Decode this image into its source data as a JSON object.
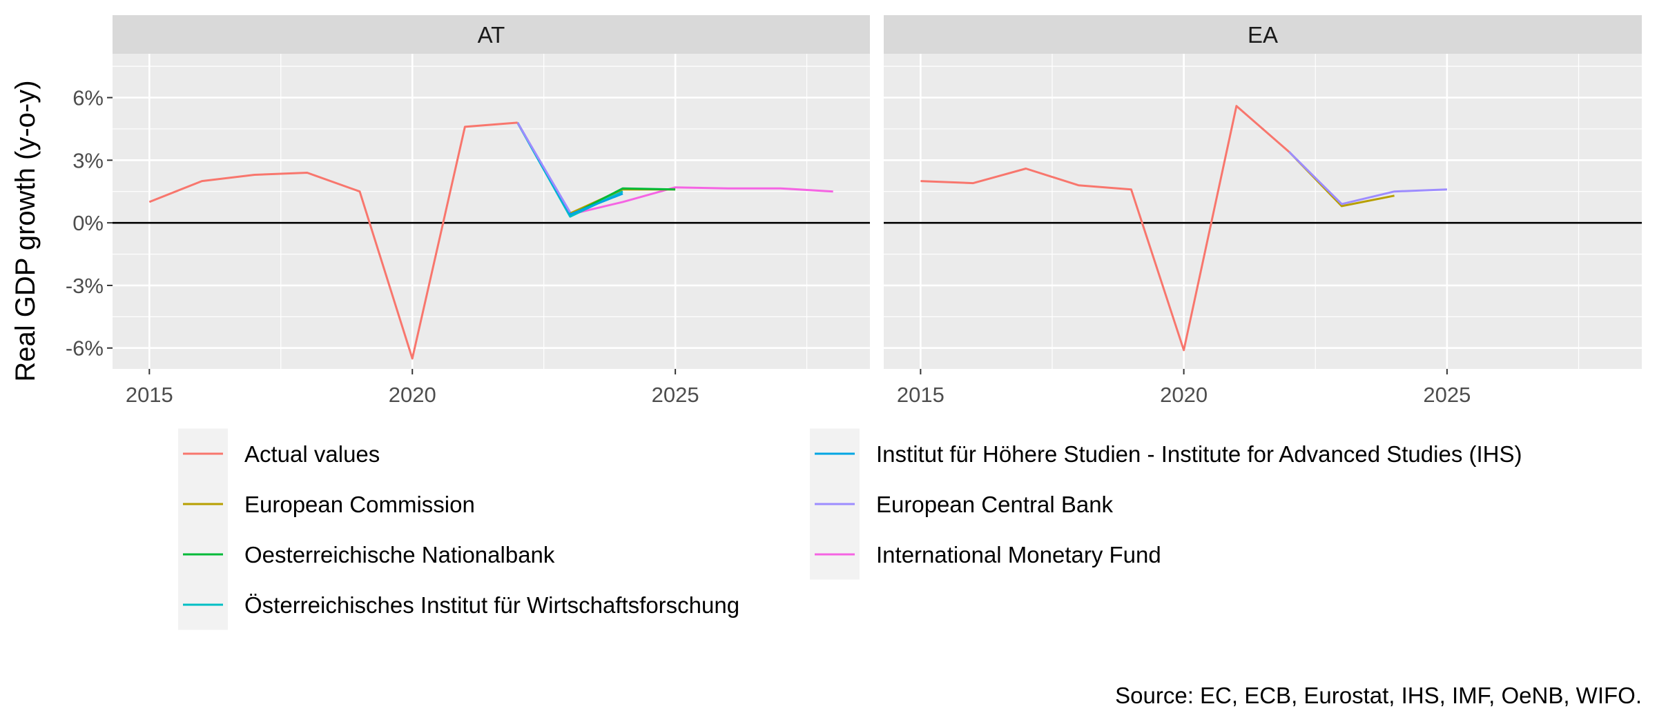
{
  "chart_data": {
    "type": "line",
    "ylabel": "Real GDP growth (y-o-y)",
    "caption": "Source: EC, ECB, Eurostat, IHS, IMF, OeNB, WIFO.",
    "xlim": [
      2014.3,
      2028.7
    ],
    "ylim": [
      -7.0,
      8.1
    ],
    "x_ticks": [
      2015,
      2020,
      2025
    ],
    "x_tick_labels": [
      "2015",
      "2020",
      "2025"
    ],
    "y_ticks": [
      -6,
      -3,
      0,
      3,
      6
    ],
    "y_tick_labels": [
      "-6%",
      "-3%",
      "0%",
      "3%",
      "6%"
    ],
    "grid": true,
    "zero_line": true,
    "legend_position": "bottom",
    "series_styles": [
      {
        "name": "Actual values",
        "color": "#F8766D"
      },
      {
        "name": "European Commission",
        "color": "#B79F00"
      },
      {
        "name": "Oesterreichische Nationalbank",
        "color": "#00BA38"
      },
      {
        "name": "Österreichisches Institut für Wirtschaftsforschung",
        "color": "#00BFC4"
      },
      {
        "name": "Institut für Höhere Studien - Institute for Advanced Studies (IHS)",
        "color": "#00A5E3"
      },
      {
        "name": "European Central Bank",
        "color": "#9D8CFF"
      },
      {
        "name": "International Monetary Fund",
        "color": "#F564E3"
      }
    ],
    "panels": [
      {
        "label": "AT",
        "series": [
          {
            "name": "International Monetary Fund",
            "x": [
              2022,
              2023,
              2024,
              2025,
              2026,
              2027,
              2028
            ],
            "y": [
              4.8,
              0.4,
              1.0,
              1.7,
              1.65,
              1.65,
              1.5
            ]
          },
          {
            "name": "European Commission",
            "x": [
              2022,
              2023,
              2024,
              2025
            ],
            "y": [
              4.8,
              0.45,
              1.6,
              1.6
            ]
          },
          {
            "name": "Oesterreichische Nationalbank",
            "x": [
              2022,
              2023,
              2024,
              2025
            ],
            "y": [
              4.8,
              0.35,
              1.65,
              1.6
            ]
          },
          {
            "name": "Österreichisches Institut für Wirtschaftsforschung",
            "x": [
              2022,
              2023,
              2024
            ],
            "y": [
              4.8,
              0.3,
              1.5
            ]
          },
          {
            "name": "Institut für Höhere Studien - Institute for Advanced Studies (IHS)",
            "x": [
              2022,
              2023,
              2024
            ],
            "y": [
              4.8,
              0.4,
              1.4
            ]
          },
          {
            "name": "European Central Bank",
            "x": [
              2022,
              2023
            ],
            "y": [
              4.8,
              0.5
            ]
          },
          {
            "name": "Actual values",
            "x": [
              2015,
              2016,
              2017,
              2018,
              2019,
              2020,
              2021,
              2022
            ],
            "y": [
              1.0,
              2.0,
              2.3,
              2.4,
              1.5,
              -6.5,
              4.6,
              4.8
            ]
          }
        ]
      },
      {
        "label": "EA",
        "series": [
          {
            "name": "European Commission",
            "x": [
              2022,
              2023,
              2024
            ],
            "y": [
              3.4,
              0.8,
              1.3
            ]
          },
          {
            "name": "European Central Bank",
            "x": [
              2022,
              2023,
              2024,
              2025
            ],
            "y": [
              3.4,
              0.9,
              1.5,
              1.6
            ]
          },
          {
            "name": "Actual values",
            "x": [
              2015,
              2016,
              2017,
              2018,
              2019,
              2020,
              2021,
              2022
            ],
            "y": [
              2.0,
              1.9,
              2.6,
              1.8,
              1.6,
              -6.1,
              5.6,
              3.4
            ]
          }
        ]
      }
    ]
  }
}
